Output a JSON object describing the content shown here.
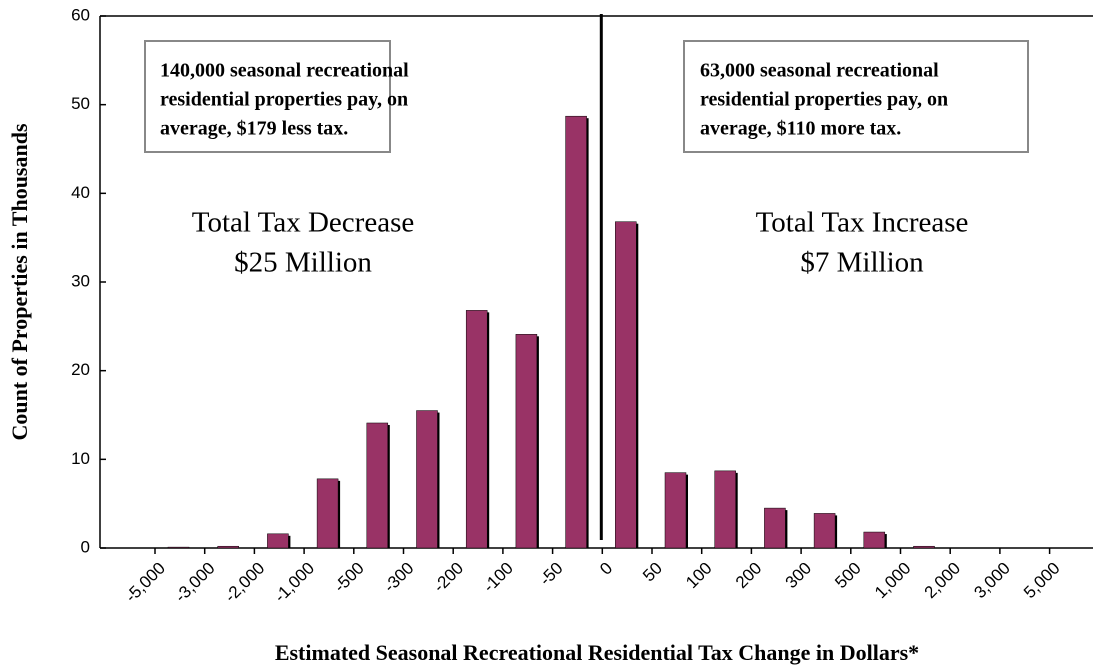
{
  "chart_data": {
    "type": "bar",
    "y_label": "Count of Properties in Thousands",
    "x_label": "Estimated Seasonal Recreational Residential Tax Change in Dollars*",
    "bin_edges": [
      "-5,000",
      "-3,000",
      "-2,000",
      "-1,000",
      "-500",
      "-300",
      "-200",
      "-100",
      "-50",
      "0",
      "50",
      "100",
      "200",
      "300",
      "500",
      "1,000",
      "2,000",
      "3,000",
      "5,000"
    ],
    "values": [
      0.1,
      0.2,
      1.6,
      7.8,
      14.1,
      15.5,
      26.8,
      24.1,
      48.7,
      36.8,
      8.5,
      8.7,
      4.5,
      3.9,
      1.8,
      0.2,
      0,
      0
    ],
    "color": "#993366",
    "ylim": [
      0,
      60
    ],
    "yticks": [
      0,
      10,
      20,
      30,
      40,
      50,
      60
    ],
    "boxes": [
      [
        "140,000 seasonal recreational",
        "residential properties pay, on",
        "average, $179 less tax."
      ],
      [
        "63,000 seasonal recreational",
        "residential properties pay, on",
        "average, $110 more tax."
      ]
    ],
    "totals": [
      [
        "Total Tax Decrease",
        "$25 Million"
      ],
      [
        "Total Tax Increase",
        "$7 Million"
      ]
    ]
  }
}
